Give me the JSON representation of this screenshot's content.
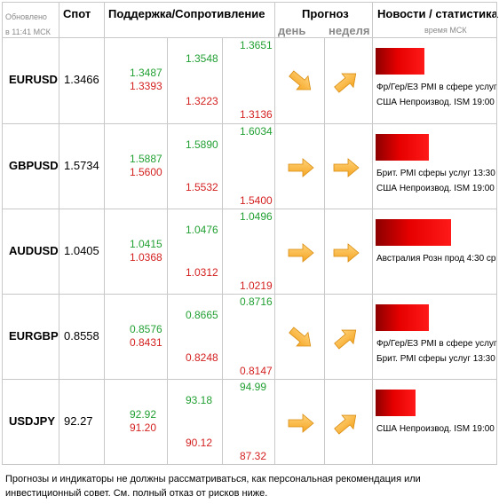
{
  "header": {
    "updated_line1": "Обновлено",
    "updated_line2": "в 11:41 МСК",
    "spot": "Спот",
    "support_resistance": "Поддержка/Сопротивление",
    "forecast": "Прогноз",
    "day": "день",
    "week": "неделя",
    "news": "Новости / статистика",
    "time": "время МСК"
  },
  "rows": [
    {
      "pair": "EURUSD",
      "spot": "1.3466",
      "levels": {
        "s1": "1.3487",
        "s2": "1.3393",
        "m1": "1.3548",
        "m2": "1.3223",
        "h1": "1.3651",
        "h2": "1.3136"
      },
      "forecast": {
        "day": "down-right",
        "week": "up-right"
      },
      "news_bar_level": 0.55,
      "news": [
        "Фр/Гер/ЕЗ PMI в сфере услуг",
        "США Непроизвод. ISM 19:00"
      ]
    },
    {
      "pair": "GBPUSD",
      "spot": "1.5734",
      "levels": {
        "s1": "1.5887",
        "s2": "1.5600",
        "m1": "1.5890",
        "m2": "1.5532",
        "h1": "1.6034",
        "h2": "1.5400"
      },
      "forecast": {
        "day": "right",
        "week": "right"
      },
      "news_bar_level": 0.6,
      "news": [
        "Брит. PMI сферы услуг 13:30",
        "США Непроизвод. ISM 19:00"
      ]
    },
    {
      "pair": "AUDUSD",
      "spot": "1.0405",
      "levels": {
        "s1": "1.0415",
        "s2": "1.0368",
        "m1": "1.0476",
        "m2": "1.0312",
        "h1": "1.0496",
        "h2": "1.0219"
      },
      "forecast": {
        "day": "right",
        "week": "right"
      },
      "news_bar_level": 0.85,
      "news": [
        "Австралия Розн прод 4:30 ср"
      ]
    },
    {
      "pair": "EURGBP",
      "spot": "0.8558",
      "levels": {
        "s1": "0.8576",
        "s2": "0.8431",
        "m1": "0.8665",
        "m2": "0.8248",
        "h1": "0.8716",
        "h2": "0.8147"
      },
      "forecast": {
        "day": "down-right",
        "week": "up-right"
      },
      "news_bar_level": 0.6,
      "news": [
        "Фр/Гер/ЕЗ PMI в сфере услуг",
        "Брит. PMI сферы услуг 13:30"
      ]
    },
    {
      "pair": "USDJPY",
      "spot": "92.27",
      "levels": {
        "s1": "92.92",
        "s2": "91.20",
        "m1": "93.18",
        "m2": "90.12",
        "h1": "94.99",
        "h2": "87.32"
      },
      "forecast": {
        "day": "right",
        "week": "up-right"
      },
      "news_bar_level": 0.45,
      "news": [
        "США Непроизвод. ISM 19:00"
      ]
    }
  ],
  "footer": {
    "line1": "Прогнозы и индикаторы не должны рассматриваться, как персональная рекомендация или",
    "line2": "инвестиционный совет. См. полный отказ от рисков ниже."
  },
  "colors": {
    "support": "#22a033",
    "resistance": "#d42020",
    "arrow": "#f5a623"
  }
}
